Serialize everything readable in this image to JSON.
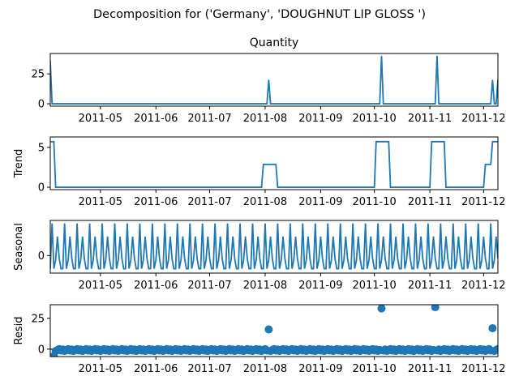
{
  "figure": {
    "suptitle": "Decomposition for ('Germany', 'DOUGHNUT LIP GLOSS ')"
  },
  "colors": {
    "series": "#1f77b4",
    "axis": "#000000",
    "background": "#ffffff"
  },
  "chart_data": [
    {
      "type": "line",
      "title": "Quantity",
      "ylabel": "",
      "x_range": [
        "2011-04-03",
        "2011-12-09"
      ],
      "ylim": [
        -2,
        42
      ],
      "yticks": [
        0,
        25
      ],
      "xtick_labels": [
        "2011-05",
        "2011-06",
        "2011-07",
        "2011-08",
        "2011-09",
        "2011-10",
        "2011-11",
        "2011-12"
      ],
      "x": [
        "2011-04-03",
        "2011-04-04",
        "2011-08-02",
        "2011-08-03",
        "2011-08-04",
        "2011-10-04",
        "2011-10-05",
        "2011-10-06",
        "2011-11-04",
        "2011-11-05",
        "2011-11-06",
        "2011-12-05",
        "2011-12-06",
        "2011-12-07",
        "2011-12-08",
        "2011-12-09"
      ],
      "values": [
        36,
        0,
        0,
        20,
        0,
        0,
        40,
        0,
        0,
        40,
        0,
        0,
        20,
        0,
        0,
        20
      ]
    },
    {
      "type": "line",
      "title": "",
      "ylabel": "Trend",
      "x_range": [
        "2011-04-03",
        "2011-12-09"
      ],
      "ylim": [
        -0.3,
        6.3
      ],
      "yticks": [
        0,
        5
      ],
      "xtick_labels": [
        "2011-05",
        "2011-06",
        "2011-07",
        "2011-08",
        "2011-09",
        "2011-10",
        "2011-11",
        "2011-12"
      ],
      "x": [
        "2011-04-05",
        "2011-04-06",
        "2011-07-30",
        "2011-07-31",
        "2011-08-07",
        "2011-08-08",
        "2011-10-01",
        "2011-10-02",
        "2011-10-09",
        "2011-10-10",
        "2011-11-01",
        "2011-11-02",
        "2011-11-09",
        "2011-11-10",
        "2011-12-01",
        "2011-12-02",
        "2011-12-05",
        "2011-12-06"
      ],
      "values": [
        5.7,
        0,
        0,
        2.86,
        2.86,
        0,
        0,
        5.71,
        5.71,
        0,
        0,
        5.71,
        5.71,
        0,
        0,
        2.86,
        2.86,
        5.71
      ]
    },
    {
      "type": "line",
      "title": "",
      "ylabel": "Seasonal",
      "x_range": [
        "2011-04-03",
        "2011-12-09"
      ],
      "ylim": [
        -0.6,
        1.2
      ],
      "yticks": [
        0
      ],
      "xtick_labels": [
        "2011-05",
        "2011-06",
        "2011-07",
        "2011-08",
        "2011-09",
        "2011-10",
        "2011-11",
        "2011-12"
      ],
      "period_days": 7,
      "weekly_pattern": [
        -0.45,
        1.1,
        -0.45,
        -0.15,
        0.65,
        -0.1,
        -0.45
      ]
    },
    {
      "type": "scatter",
      "title": "",
      "ylabel": "Resid",
      "x_range": [
        "2011-04-03",
        "2011-12-09"
      ],
      "ylim": [
        -6,
        36
      ],
      "yticks": [
        0,
        25
      ],
      "xtick_labels": [
        "2011-05",
        "2011-06",
        "2011-07",
        "2011-08",
        "2011-09",
        "2011-10",
        "2011-11",
        "2011-12"
      ],
      "baseline": 0,
      "x": [
        "2011-04-05",
        "2011-08-03",
        "2011-10-05",
        "2011-11-04",
        "2011-12-06"
      ],
      "values": [
        -5.5,
        16,
        33,
        34,
        17
      ]
    }
  ]
}
